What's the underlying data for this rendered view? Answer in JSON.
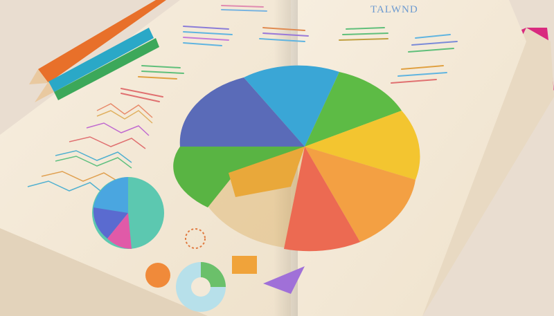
{
  "scene": {
    "header_text": "TALWND",
    "palette": {
      "background": "#e9ddd0",
      "page": "#f6ecdb",
      "cover": "#d92a7f",
      "pie_blue": "#3aa6d6",
      "pie_indigo": "#5a6bb8",
      "pie_green": "#5dbb45",
      "pie_yellow": "#f3c530",
      "pie_orange": "#f3a043",
      "pie_red": "#ec6a52"
    },
    "icons": [
      "orange-pencil-icon",
      "teal-pencil-icon",
      "green-pencil-icon"
    ]
  }
}
